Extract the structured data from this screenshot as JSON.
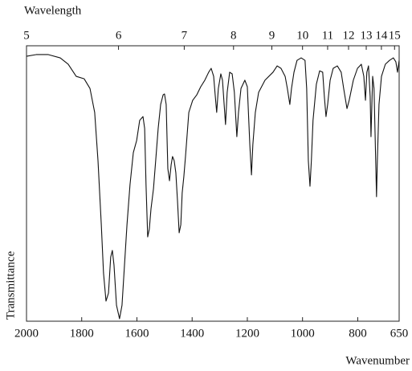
{
  "chart_data": {
    "type": "line",
    "xlabel": "Wavenumber",
    "ylabel": "Transmittance",
    "x2label": "Wavelength",
    "xlim": [
      2000,
      650
    ],
    "xticks": [
      2000,
      1800,
      1600,
      1400,
      1200,
      1000,
      800,
      650
    ],
    "x2ticks": [
      5,
      6,
      7,
      8,
      9,
      10,
      11,
      12,
      13,
      14,
      15
    ],
    "ylim": [
      0,
      100
    ],
    "series": [
      {
        "name": "Transmittance",
        "color": "#111111",
        "x": [
          2000,
          1965,
          1921,
          1878,
          1849,
          1820,
          1791,
          1770,
          1753,
          1741,
          1729,
          1721,
          1712,
          1703,
          1695,
          1689,
          1683,
          1674,
          1663,
          1654,
          1645,
          1636,
          1625,
          1613,
          1601,
          1590,
          1578,
          1572,
          1567,
          1561,
          1555,
          1549,
          1540,
          1532,
          1523,
          1514,
          1505,
          1500,
          1494,
          1488,
          1482,
          1476,
          1471,
          1465,
          1459,
          1453,
          1447,
          1441,
          1436,
          1430,
          1424,
          1412,
          1398,
          1383,
          1369,
          1354,
          1340,
          1331,
          1322,
          1316,
          1311,
          1305,
          1296,
          1290,
          1284,
          1279,
          1273,
          1264,
          1255,
          1247,
          1238,
          1232,
          1223,
          1209,
          1200,
          1191,
          1185,
          1180,
          1171,
          1159,
          1136,
          1107,
          1092,
          1078,
          1063,
          1055,
          1046,
          1040,
          1031,
          1020,
          1005,
          991,
          985,
          979,
          973,
          968,
          962,
          950,
          938,
          927,
          921,
          915,
          909,
          900,
          889,
          874,
          860,
          851,
          839,
          831,
          816,
          801,
          787,
          778,
          772,
          767,
          761,
          755,
          752,
          746,
          741,
          735,
          732,
          729,
          723,
          714,
          700,
          685,
          671,
          662,
          656,
          650
        ],
        "values": [
          96.2,
          96.8,
          96.8,
          95.6,
          93.3,
          88.9,
          88.0,
          84.5,
          75.8,
          58.3,
          35.0,
          17.5,
          7.3,
          10.2,
          23.3,
          25.7,
          20.4,
          5.8,
          0.9,
          5.8,
          20.4,
          35.0,
          49.6,
          61.2,
          65.6,
          72.9,
          74.3,
          70.0,
          49.6,
          30.6,
          33.5,
          40.8,
          48.1,
          58.3,
          70.0,
          78.7,
          82.2,
          82.5,
          78.7,
          55.4,
          51.0,
          56.8,
          59.8,
          58.3,
          53.9,
          43.7,
          32.1,
          35.0,
          46.6,
          52.5,
          59.8,
          75.8,
          80.2,
          82.2,
          85.1,
          87.5,
          90.4,
          91.8,
          88.9,
          81.6,
          75.8,
          84.5,
          89.8,
          87.5,
          78.7,
          71.4,
          83.1,
          90.4,
          89.8,
          83.1,
          67.0,
          75.8,
          84.5,
          87.5,
          85.1,
          64.1,
          53.1,
          64.1,
          75.8,
          83.1,
          87.5,
          90.4,
          92.7,
          91.8,
          88.9,
          84.5,
          78.7,
          84.5,
          90.4,
          94.7,
          95.6,
          94.7,
          84.5,
          58.3,
          49.0,
          58.3,
          72.9,
          86.0,
          90.9,
          90.4,
          81.6,
          74.3,
          78.7,
          87.5,
          91.8,
          92.7,
          90.4,
          84.5,
          77.2,
          80.2,
          87.5,
          91.8,
          93.3,
          88.9,
          80.2,
          90.4,
          92.7,
          81.6,
          67.0,
          88.9,
          84.5,
          58.3,
          45.2,
          58.3,
          78.7,
          88.9,
          93.3,
          94.7,
          95.6,
          94.2,
          90.4,
          94.7
        ]
      }
    ]
  }
}
